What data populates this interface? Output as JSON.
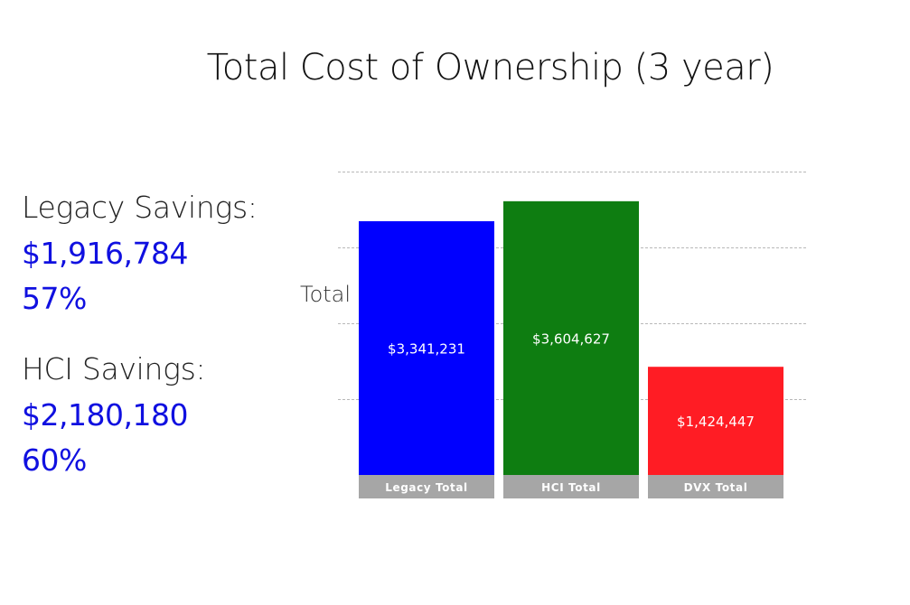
{
  "title": "Total Cost of Ownership (3 year)",
  "savings": {
    "legacy": {
      "label": "Legacy Savings:",
      "amount": "$1,916,784",
      "percent": "57%"
    },
    "hci": {
      "label": "HCI Savings:",
      "amount": "$2,180,180",
      "percent": "60%"
    }
  },
  "colors": {
    "accent": "#1010e0",
    "legacy": "#0000ff",
    "hci": "#0e7d11",
    "dvx": "#ff1c24",
    "category_band": "#a6a6a6",
    "grid": "#b8b8b8"
  },
  "chart_data": {
    "type": "bar",
    "title": "Total Cost of Ownership (3 year)",
    "ylabel": "Total",
    "ylim": [
      0,
      3900000
    ],
    "gridlines": [
      1000000,
      2000000,
      3000000,
      4000000
    ],
    "categories": [
      "Legacy Total",
      "HCI Total",
      "DVX Total"
    ],
    "values": [
      3341231,
      3604627,
      1424447
    ],
    "value_labels": [
      "$3,341,231",
      "$3,604,627",
      "$1,424,447"
    ],
    "bar_colors": [
      "#0000ff",
      "#0e7d11",
      "#ff1c24"
    ]
  }
}
